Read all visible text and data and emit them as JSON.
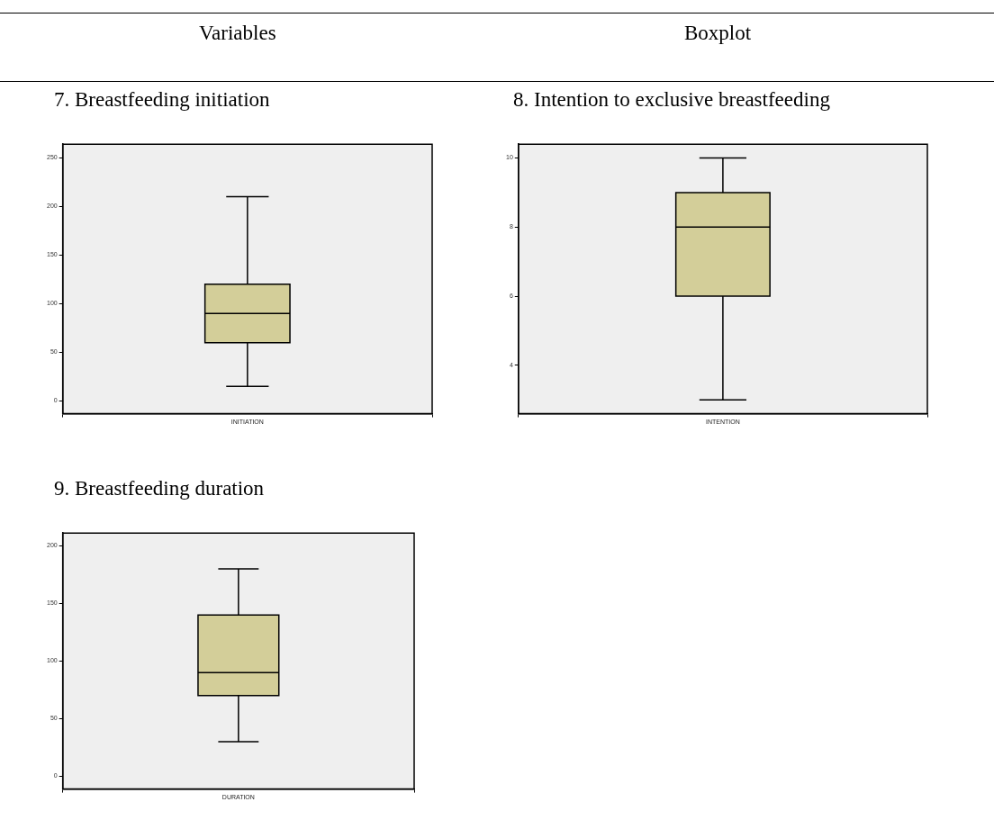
{
  "chart_data": [
    {
      "type": "other",
      "annotations": [
        "Variables",
        "Boxplot"
      ]
    },
    {
      "type": "box",
      "title": "7. Breastfeeding initiation",
      "categories": [
        "INITIATION"
      ],
      "ylim": [
        -13,
        264
      ],
      "yticks": [
        0,
        50,
        100,
        150,
        200,
        250
      ],
      "series": [
        {
          "color": "#d3ce99",
          "boxes": [
            {
              "low": 15,
              "q1": 60,
              "median": 90,
              "q3": 120,
              "high": 210
            }
          ]
        }
      ]
    },
    {
      "type": "box",
      "title": "8. Intention to exclusive breastfeeding",
      "categories": [
        "INTENTION"
      ],
      "ylim": [
        2.6,
        10.4
      ],
      "yticks": [
        4,
        6,
        8,
        10
      ],
      "series": [
        {
          "color": "#d3ce99",
          "boxes": [
            {
              "low": 3,
              "q1": 6,
              "median": 8,
              "q3": 9,
              "high": 10
            }
          ]
        }
      ]
    },
    {
      "type": "box",
      "title": "9. Breastfeeding duration",
      "categories": [
        "DURATION"
      ],
      "ylim": [
        -11,
        211
      ],
      "yticks": [
        0,
        50,
        100,
        150,
        200
      ],
      "series": [
        {
          "color": "#d3ce99",
          "boxes": [
            {
              "low": 30,
              "q1": 70,
              "median": 90,
              "q3": 140,
              "high": 180
            }
          ]
        }
      ]
    }
  ]
}
